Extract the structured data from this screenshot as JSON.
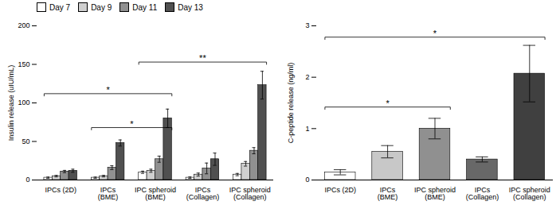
{
  "chart_data": [
    {
      "type": "bar",
      "categories": [
        "IPCs (2D)",
        "IPCs\n(BME)",
        "IPC spheroid\n(BME)",
        "IPCs\n(Collagen)",
        "IPC spheroid\n(Collagen)"
      ],
      "series": [
        {
          "name": "Day 7",
          "color": "#ffffff",
          "values": [
            3,
            3,
            10,
            3,
            7
          ],
          "errors": [
            0.8,
            0.8,
            1.5,
            1,
            1.5
          ]
        },
        {
          "name": "Day 9",
          "color": "#d0d0d0",
          "values": [
            5,
            5,
            12,
            7,
            21
          ],
          "errors": [
            1,
            1,
            2,
            2,
            3
          ]
        },
        {
          "name": "Day 11",
          "color": "#909090",
          "values": [
            11,
            16,
            27,
            15,
            38
          ],
          "errors": [
            1.5,
            2.5,
            4,
            7,
            4
          ]
        },
        {
          "name": "Day 13",
          "color": "#505050",
          "values": [
            12,
            48,
            80,
            27,
            123
          ],
          "errors": [
            2,
            4,
            12,
            8,
            18
          ]
        }
      ],
      "ylabel": "Insulin release (uIU/mL)",
      "ylim": [
        0,
        200
      ],
      "yticks": [
        0,
        50,
        100,
        150,
        200
      ],
      "grid": false,
      "legend": "upper left",
      "annotations": [
        {
          "x1": "IPCs\n(BME)",
          "x2": "IPC spheroid\n(BME)",
          "y": 68,
          "label": "*"
        },
        {
          "x1": "IPCs (2D)",
          "x2": "IPC spheroid\n(BME)",
          "y": 112,
          "label": "*"
        },
        {
          "x1": "IPC spheroid\n(BME)",
          "x2": "IPC spheroid\n(Collagen)",
          "y": 153,
          "label": "**"
        }
      ]
    },
    {
      "type": "bar",
      "categories": [
        "IPCs (2D)",
        "IPCs\n(BME)",
        "IPC spheroid\n(BME)",
        "IPCs\n(Collagen)",
        "IPC spheroid\n(Collagen)"
      ],
      "values": [
        0.15,
        0.55,
        1.0,
        0.4,
        2.07
      ],
      "errors": [
        0.05,
        0.12,
        0.2,
        0.05,
        0.55
      ],
      "colors": [
        "#ffffff",
        "#c8c8c8",
        "#909090",
        "#686868",
        "#404040"
      ],
      "ylabel": "C-peptide release (ng/ml)",
      "ylim": [
        0,
        3
      ],
      "yticks": [
        0,
        1,
        2,
        3
      ],
      "grid": false,
      "annotations": [
        {
          "x1": "IPCs (2D)",
          "x2": "IPC spheroid\n(BME)",
          "y": 1.42,
          "label": "*"
        },
        {
          "x1": "IPCs (2D)",
          "x2": "IPC spheroid\n(Collagen)",
          "y": 2.78,
          "label": "*"
        }
      ]
    }
  ]
}
